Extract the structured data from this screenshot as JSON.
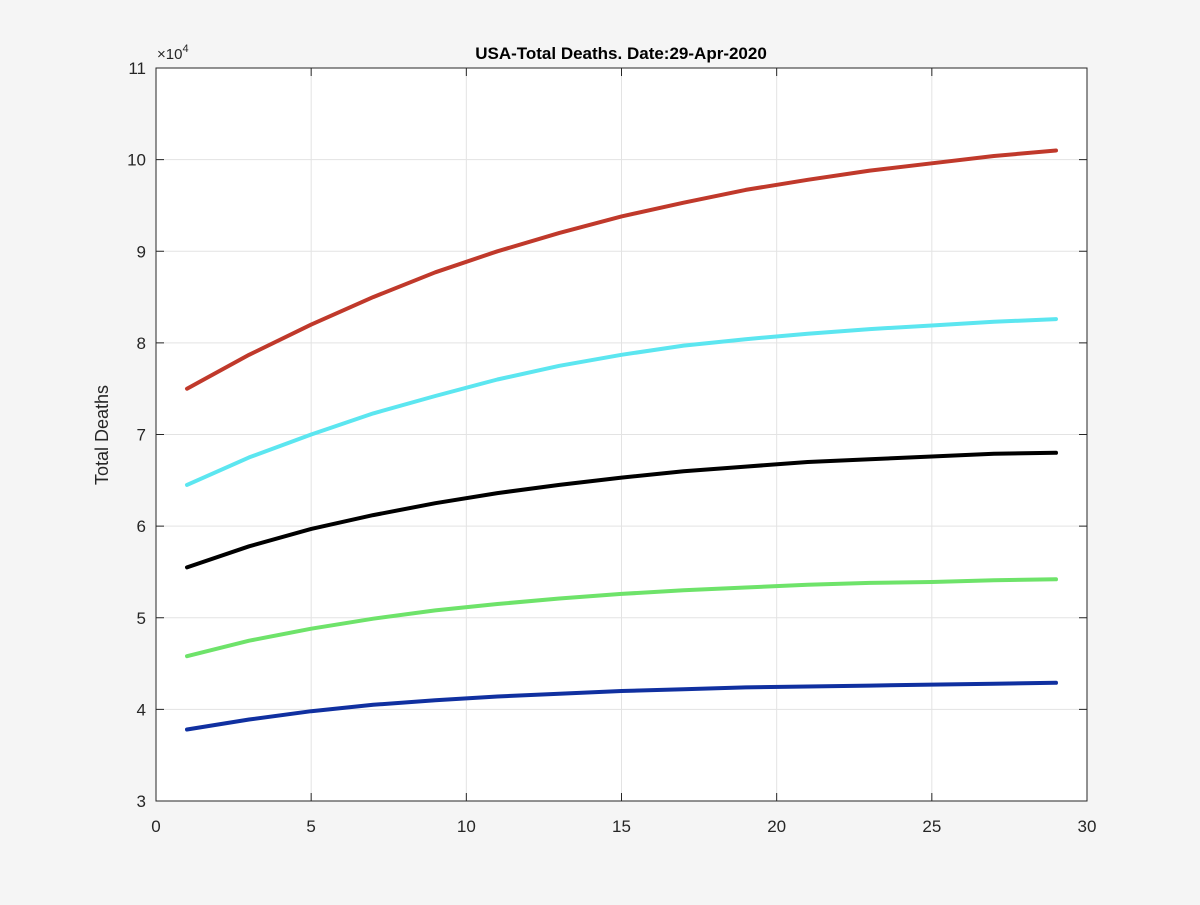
{
  "chart_data": {
    "type": "line",
    "title": "USA-Total Deaths. Date:29-Apr-2020",
    "xlabel": "",
    "ylabel": "Total Deaths",
    "y_exponent_label": "×10",
    "y_exponent": "4",
    "xlim": [
      0,
      30
    ],
    "ylim": [
      3,
      11
    ],
    "y_scale_factor": 10000,
    "xticks": [
      0,
      5,
      10,
      15,
      20,
      25,
      30
    ],
    "yticks": [
      3,
      4,
      5,
      6,
      7,
      8,
      9,
      10,
      11
    ],
    "grid": true,
    "legend": "none",
    "x": [
      1,
      3,
      5,
      7,
      9,
      11,
      13,
      15,
      17,
      19,
      21,
      23,
      25,
      27,
      29
    ],
    "series": [
      {
        "color": "#c0392b",
        "values": [
          7.5,
          7.87,
          8.2,
          8.5,
          8.77,
          9.0,
          9.2,
          9.38,
          9.53,
          9.67,
          9.78,
          9.88,
          9.96,
          10.04,
          10.1
        ]
      },
      {
        "color": "#5ce6f0",
        "values": [
          6.45,
          6.75,
          7.0,
          7.23,
          7.42,
          7.6,
          7.75,
          7.87,
          7.97,
          8.04,
          8.1,
          8.15,
          8.19,
          8.23,
          8.26
        ]
      },
      {
        "color": "#000000",
        "values": [
          5.55,
          5.78,
          5.97,
          6.12,
          6.25,
          6.36,
          6.45,
          6.53,
          6.6,
          6.65,
          6.7,
          6.73,
          6.76,
          6.79,
          6.8
        ]
      },
      {
        "color": "#6ee36a",
        "values": [
          4.58,
          4.75,
          4.88,
          4.99,
          5.08,
          5.15,
          5.21,
          5.26,
          5.3,
          5.33,
          5.36,
          5.38,
          5.39,
          5.41,
          5.42
        ]
      },
      {
        "color": "#1030a0",
        "values": [
          3.78,
          3.89,
          3.98,
          4.05,
          4.1,
          4.14,
          4.17,
          4.2,
          4.22,
          4.24,
          4.25,
          4.26,
          4.27,
          4.28,
          4.29
        ]
      }
    ]
  }
}
